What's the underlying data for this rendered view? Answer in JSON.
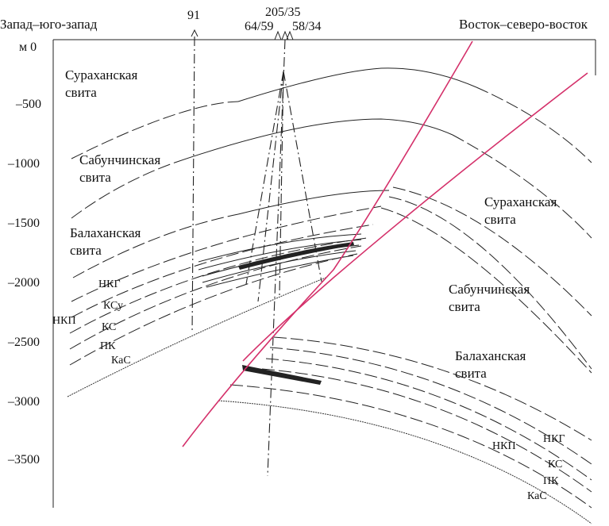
{
  "header": {
    "left": "Запад–юго-запад",
    "right": "Восток–северо-восток"
  },
  "wells": [
    "91",
    "205/35",
    "64/59",
    "58/34"
  ],
  "depth_axis": [
    "м 0",
    "–500",
    "–1000",
    "–1500",
    "–2000",
    "–2500",
    "–3000",
    "–3500"
  ],
  "formations_left": [
    [
      "Сураханская",
      "свита"
    ],
    [
      "Сабунчинская",
      "свита"
    ],
    [
      "Балаханская",
      "свита"
    ]
  ],
  "formations_right": [
    [
      "Сураханская",
      "свита"
    ],
    [
      "Сабунчинская",
      "свита"
    ],
    [
      "Балаханская",
      "свита"
    ]
  ],
  "horizons_left": [
    "НКГ",
    "КСу",
    "НКП",
    "КС",
    "ПК",
    "КаС"
  ],
  "horizons_right": [
    "НКГ",
    "НКП",
    "КС",
    "ПК",
    "КаС"
  ]
}
